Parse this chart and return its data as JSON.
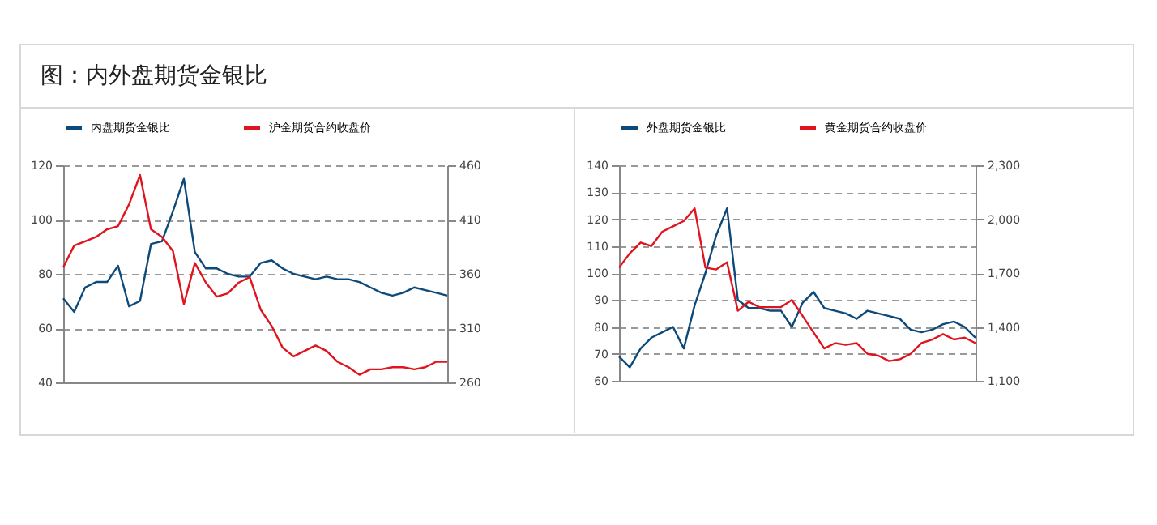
{
  "chart_data": [
    {
      "type": "line",
      "title": "图：内外盘期货金银比",
      "legend": "top",
      "grid": "y",
      "categories": [
        null,
        null,
        null,
        null,
        null,
        null,
        null,
        null,
        null,
        null,
        null,
        null,
        null,
        null,
        null,
        null,
        null,
        null,
        null,
        null,
        null,
        null,
        null,
        null,
        null,
        null,
        null,
        null,
        null,
        null,
        null,
        null,
        null,
        null,
        null,
        null
      ],
      "ylim": [
        40,
        120
      ],
      "yticks": [
        40,
        60,
        80,
        100,
        120
      ],
      "y2lim": [
        260,
        460
      ],
      "y2ticks": [
        260,
        310,
        360,
        410,
        460
      ],
      "series": [
        {
          "name": "内盘期货金银比",
          "color": "#0d4a7a",
          "values": [
            71,
            66,
            75,
            77,
            77,
            83,
            68,
            70,
            91,
            92,
            103,
            115,
            88,
            82,
            82,
            80,
            79,
            79,
            84,
            85,
            82,
            80,
            79,
            78,
            79,
            78,
            78,
            77,
            75,
            73,
            72,
            73,
            75,
            74,
            73,
            72
          ]
        },
        {
          "name": "沪金期货合约收盘价",
          "color": "#e0141e",
          "axis": "y2",
          "values": [
            366,
            386,
            390,
            394,
            401,
            404,
            424,
            451,
            401,
            394,
            381,
            332,
            370,
            352,
            339,
            342,
            352,
            357,
            327,
            312,
            292,
            284,
            289,
            294,
            289,
            279,
            274,
            267,
            272,
            272,
            274,
            274,
            272,
            274,
            279,
            279
          ]
        }
      ]
    },
    {
      "type": "line",
      "legend": "top",
      "grid": "y",
      "categories": [
        null,
        null,
        null,
        null,
        null,
        null,
        null,
        null,
        null,
        null,
        null,
        null,
        null,
        null,
        null,
        null,
        null,
        null,
        null,
        null,
        null,
        null,
        null,
        null,
        null,
        null,
        null,
        null,
        null,
        null,
        null,
        null,
        null,
        null
      ],
      "ylim": [
        60,
        140
      ],
      "yticks": [
        60,
        70,
        80,
        90,
        100,
        110,
        120,
        130,
        140
      ],
      "y2lim": [
        1100,
        2300
      ],
      "y2ticks": [
        {
          "value": 1100,
          "label": "1,100"
        },
        {
          "value": 1400,
          "label": "1,400"
        },
        {
          "value": 1700,
          "label": "1,700"
        },
        {
          "value": 2000,
          "label": "2,000"
        },
        {
          "value": 2300,
          "label": "2,300"
        }
      ],
      "series": [
        {
          "name": "外盘期货金银比",
          "color": "#0d4a7a",
          "values": [
            69,
            65,
            72,
            76,
            78,
            80,
            72,
            88,
            100,
            114,
            124,
            90,
            87,
            87,
            86,
            86,
            80,
            89,
            93,
            87,
            86,
            85,
            83,
            86,
            85,
            84,
            83,
            79,
            78,
            79,
            81,
            82,
            80,
            76
          ]
        },
        {
          "name": "黄金期货合约收盘价",
          "color": "#e0141e",
          "axis": "y2",
          "values": [
            1730,
            1810,
            1870,
            1850,
            1930,
            1960,
            1990,
            2060,
            1730,
            1720,
            1760,
            1490,
            1540,
            1510,
            1510,
            1510,
            1550,
            1460,
            1370,
            1280,
            1310,
            1300,
            1310,
            1250,
            1240,
            1210,
            1220,
            1250,
            1310,
            1330,
            1360,
            1330,
            1340,
            1310
          ]
        }
      ]
    }
  ]
}
